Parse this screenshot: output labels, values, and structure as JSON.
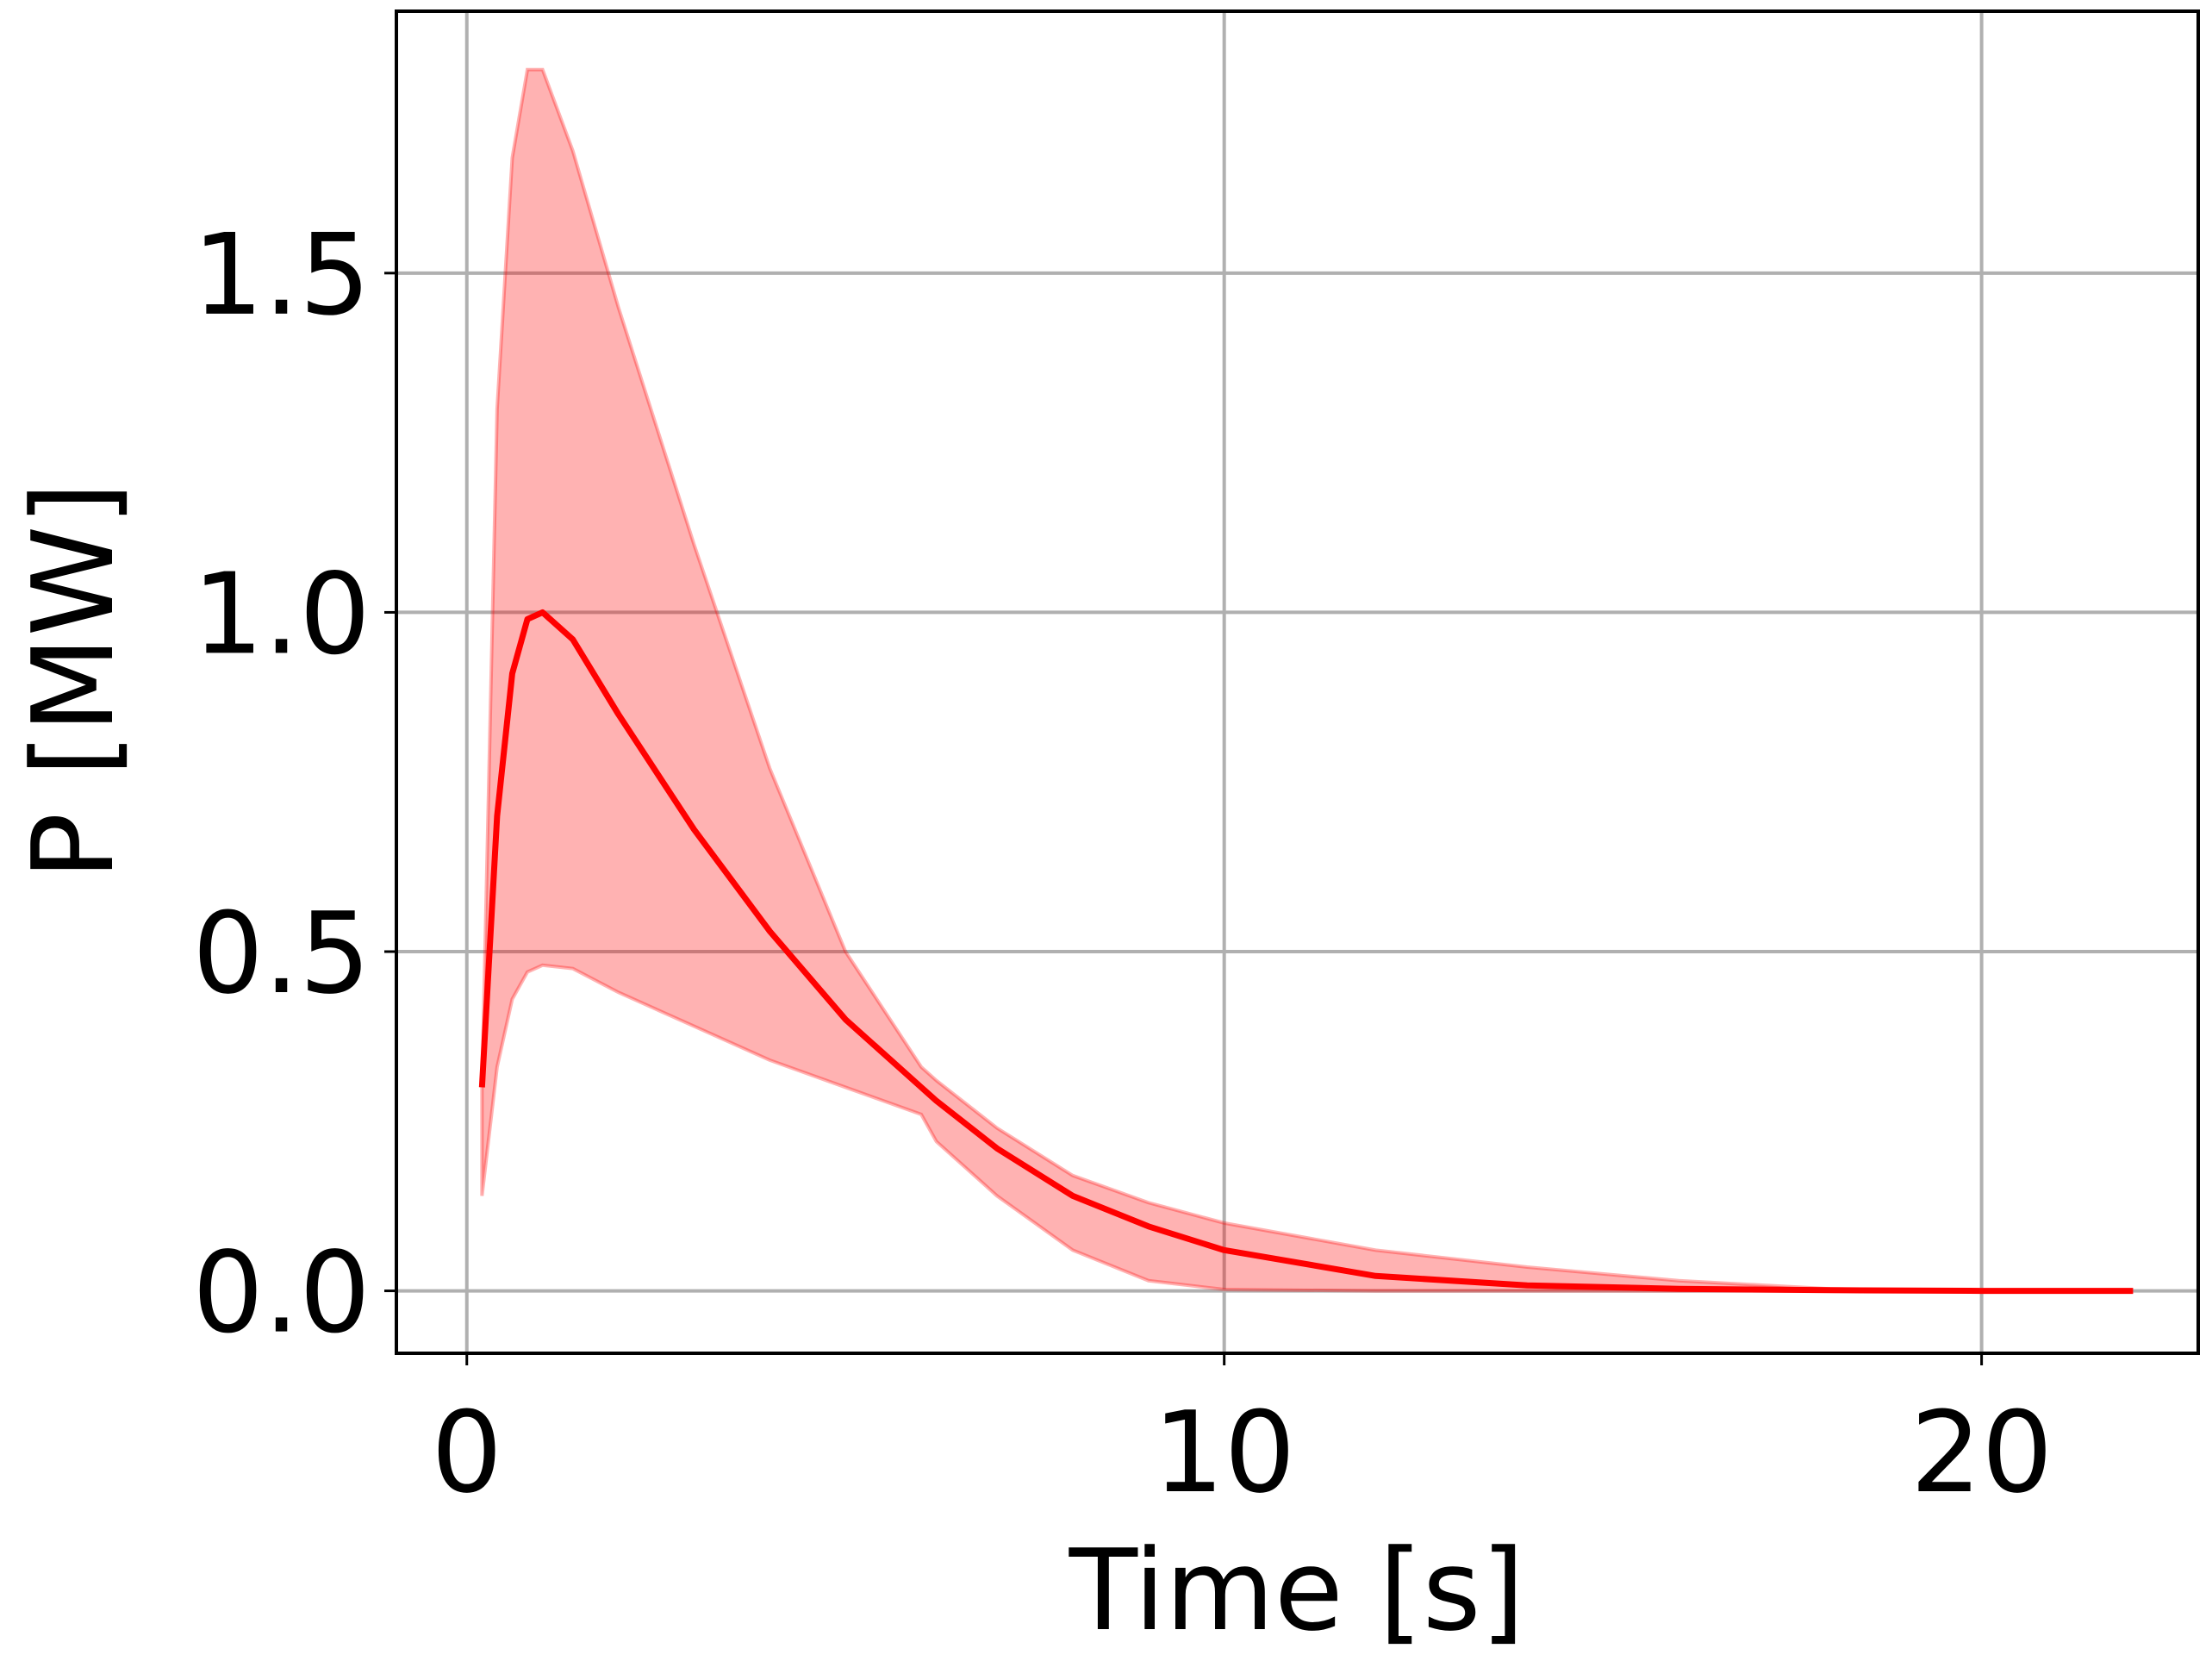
{
  "chart_data": {
    "type": "line",
    "xlabel": "Time [s]",
    "ylabel": "P [MW]",
    "x": [
      0.2,
      0.4,
      0.6,
      0.8,
      1.0,
      1.4,
      2,
      3,
      4,
      5,
      6,
      6.2,
      7,
      8,
      9,
      10,
      12,
      14,
      16,
      18,
      20,
      22
    ],
    "series": [
      {
        "color": "#ff0000",
        "values": [
          0.3,
          0.7,
          0.91,
          0.99,
          1.0,
          0.96,
          0.85,
          0.68,
          0.53,
          0.4,
          0.3,
          0.28,
          0.21,
          0.14,
          0.095,
          0.06,
          0.022,
          0.008,
          0.003,
          0.001,
          0,
          0
        ],
        "lower": [
          0.14,
          0.33,
          0.43,
          0.47,
          0.48,
          0.475,
          0.44,
          0.39,
          0.34,
          0.3,
          0.26,
          0.22,
          0.14,
          0.06,
          0.015,
          0.002,
          0,
          0,
          0,
          0,
          0,
          0
        ],
        "upper": [
          0.3,
          1.3,
          1.67,
          1.8,
          1.8,
          1.68,
          1.45,
          1.1,
          0.77,
          0.5,
          0.33,
          0.31,
          0.24,
          0.17,
          0.13,
          0.1,
          0.06,
          0.035,
          0.015,
          0.003,
          0,
          0
        ]
      }
    ],
    "xlim": [
      -0.93,
      22.86
    ],
    "ylim": [
      -0.092,
      1.886
    ],
    "xticks": [
      0,
      10,
      20
    ],
    "yticks": [
      {
        "value": 0,
        "label": "0.0"
      },
      0.5,
      {
        "value": 1,
        "label": "1.0"
      },
      1.5
    ],
    "grid": true
  }
}
